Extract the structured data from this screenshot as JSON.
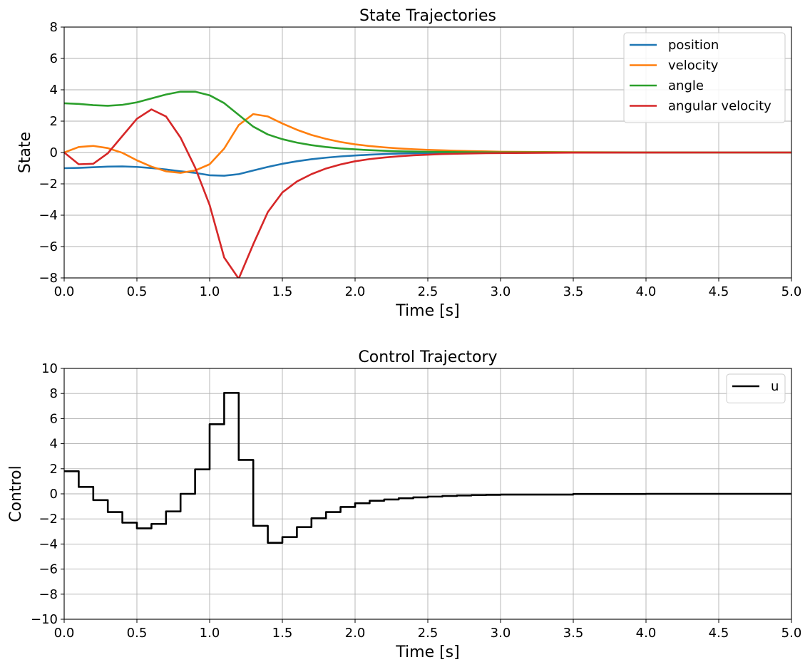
{
  "colors": {
    "position": "#1f77b4",
    "velocity": "#ff7f0e",
    "angle": "#2ca02c",
    "angular_velocity": "#d62728",
    "u": "#000000",
    "grid": "#b0b0b0"
  },
  "chart_data": [
    {
      "type": "line",
      "title": "State Trajectories",
      "xlabel": "Time [s]",
      "ylabel": "State",
      "xlim": [
        0,
        5
      ],
      "ylim": [
        -8,
        8
      ],
      "xticks": [
        0.0,
        0.5,
        1.0,
        1.5,
        2.0,
        2.5,
        3.0,
        3.5,
        4.0,
        4.5,
        5.0
      ],
      "yticks": [
        -8,
        -6,
        -4,
        -2,
        0,
        2,
        4,
        6,
        8
      ],
      "xtick_labels": [
        "0.0",
        "0.5",
        "1.0",
        "1.5",
        "2.0",
        "2.5",
        "3.0",
        "3.5",
        "4.0",
        "4.5",
        "5.0"
      ],
      "ytick_labels": [
        "−8",
        "−6",
        "−4",
        "−2",
        "0",
        "2",
        "4",
        "6",
        "8"
      ],
      "grid": true,
      "legend": "top-right",
      "x": [
        0.0,
        0.1,
        0.2,
        0.3,
        0.4,
        0.5,
        0.6,
        0.7,
        0.8,
        0.9,
        1.0,
        1.1,
        1.2,
        1.3,
        1.4,
        1.5,
        1.6,
        1.7,
        1.8,
        1.9,
        2.0,
        2.1,
        2.2,
        2.3,
        2.4,
        2.5,
        2.6,
        2.7,
        2.8,
        2.9,
        3.0,
        3.5,
        4.0,
        4.5,
        5.0
      ],
      "series": [
        {
          "name": "position",
          "values": [
            -1.0,
            -0.98,
            -0.94,
            -0.9,
            -0.89,
            -0.92,
            -0.99,
            -1.08,
            -1.2,
            -1.3,
            -1.45,
            -1.48,
            -1.38,
            -1.15,
            -0.92,
            -0.72,
            -0.56,
            -0.43,
            -0.33,
            -0.25,
            -0.19,
            -0.14,
            -0.1,
            -0.07,
            -0.05,
            -0.04,
            -0.03,
            -0.02,
            -0.015,
            -0.01,
            -0.008,
            -0.003,
            -0.001,
            0.0,
            0.0
          ]
        },
        {
          "name": "velocity",
          "values": [
            0.0,
            0.35,
            0.42,
            0.28,
            -0.02,
            -0.5,
            -0.9,
            -1.2,
            -1.3,
            -1.15,
            -0.75,
            0.25,
            1.75,
            2.45,
            2.3,
            1.85,
            1.45,
            1.12,
            0.87,
            0.67,
            0.52,
            0.41,
            0.33,
            0.26,
            0.21,
            0.17,
            0.14,
            0.11,
            0.09,
            0.07,
            0.05,
            0.02,
            0.01,
            0.0,
            0.0
          ]
        },
        {
          "name": "angle",
          "values": [
            3.14,
            3.1,
            3.02,
            2.98,
            3.04,
            3.2,
            3.45,
            3.7,
            3.88,
            3.88,
            3.65,
            3.15,
            2.4,
            1.65,
            1.15,
            0.85,
            0.63,
            0.47,
            0.35,
            0.26,
            0.2,
            0.15,
            0.11,
            0.08,
            0.06,
            0.045,
            0.035,
            0.027,
            0.02,
            0.015,
            0.011,
            0.004,
            0.001,
            0.0,
            0.0
          ]
        },
        {
          "name": "angular velocity",
          "values": [
            0.0,
            -0.75,
            -0.72,
            -0.05,
            1.05,
            2.15,
            2.75,
            2.3,
            0.95,
            -0.95,
            -3.35,
            -6.7,
            -8.05,
            -5.85,
            -3.8,
            -2.55,
            -1.85,
            -1.38,
            -1.02,
            -0.76,
            -0.56,
            -0.42,
            -0.32,
            -0.24,
            -0.18,
            -0.14,
            -0.1,
            -0.08,
            -0.06,
            -0.045,
            -0.035,
            -0.01,
            -0.003,
            0.0,
            0.0
          ]
        }
      ]
    },
    {
      "type": "line",
      "step": "post",
      "title": "Control Trajectory",
      "xlabel": "Time [s]",
      "ylabel": "Control",
      "xlim": [
        0,
        5
      ],
      "ylim": [
        -10,
        10
      ],
      "xticks": [
        0.0,
        0.5,
        1.0,
        1.5,
        2.0,
        2.5,
        3.0,
        3.5,
        4.0,
        4.5,
        5.0
      ],
      "yticks": [
        -10,
        -8,
        -6,
        -4,
        -2,
        0,
        2,
        4,
        6,
        8,
        10
      ],
      "xtick_labels": [
        "0.0",
        "0.5",
        "1.0",
        "1.5",
        "2.0",
        "2.5",
        "3.0",
        "3.5",
        "4.0",
        "4.5",
        "5.0"
      ],
      "ytick_labels": [
        "−10",
        "−8",
        "−6",
        "−4",
        "−2",
        "0",
        "2",
        "4",
        "6",
        "8",
        "10"
      ],
      "grid": true,
      "legend": "top-right",
      "x": [
        0.0,
        0.1,
        0.2,
        0.3,
        0.4,
        0.5,
        0.6,
        0.7,
        0.8,
        0.9,
        1.0,
        1.1,
        1.2,
        1.3,
        1.4,
        1.5,
        1.6,
        1.7,
        1.8,
        1.9,
        2.0,
        2.1,
        2.2,
        2.3,
        2.4,
        2.5,
        2.6,
        2.7,
        2.8,
        2.9,
        3.0,
        3.5,
        4.0,
        4.5
      ],
      "series": [
        {
          "name": "u",
          "values": [
            1.8,
            0.55,
            -0.5,
            -1.45,
            -2.3,
            -2.75,
            -2.4,
            -1.4,
            0.0,
            1.95,
            5.55,
            8.05,
            2.7,
            -2.55,
            -3.9,
            -3.45,
            -2.65,
            -1.95,
            -1.45,
            -1.05,
            -0.75,
            -0.55,
            -0.45,
            -0.35,
            -0.28,
            -0.22,
            -0.17,
            -0.13,
            -0.1,
            -0.08,
            -0.06,
            -0.01,
            0.0,
            0.0
          ]
        }
      ]
    }
  ]
}
